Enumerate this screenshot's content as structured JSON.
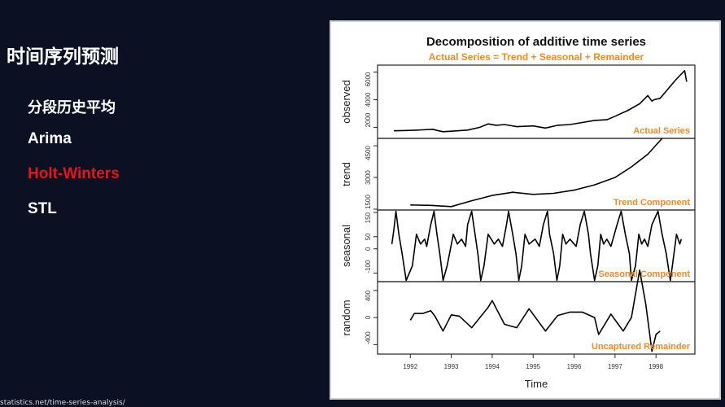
{
  "slide": {
    "title": "时间序列预测",
    "items": [
      {
        "label": "分段历史平均",
        "active": false
      },
      {
        "label": "Arima",
        "active": false
      },
      {
        "label": "Holt-Winters",
        "active": true
      },
      {
        "label": "STL",
        "active": false
      }
    ],
    "footer": "statistics.net/time-series-analysis/",
    "active_color": "#e8141a"
  },
  "chart_data": {
    "type": "line",
    "title": "Decomposition of additive time series",
    "subtitle": "Actual Series = Trend + Seasonal + Remainder",
    "xlabel": "Time",
    "x_ticks": [
      "1992",
      "1993",
      "1994",
      "1995",
      "1996",
      "1997",
      "1998"
    ],
    "xlim": [
      1991.2,
      1998.95
    ],
    "accent_color": "#f08a24",
    "panels": [
      {
        "ylabel": "observed",
        "annotation": "Actual Series",
        "ylim": [
          1200,
          6500
        ],
        "y_ticks": [
          "2000",
          "4000",
          "6000"
        ],
        "x": [
          1991.6,
          1992.0,
          1992.3,
          1992.55,
          1992.65,
          1992.8,
          1993.0,
          1993.4,
          1993.7,
          1993.9,
          1994.1,
          1994.3,
          1994.6,
          1995.0,
          1995.3,
          1995.6,
          1995.9,
          1996.2,
          1996.5,
          1996.8,
          1997.0,
          1997.3,
          1997.6,
          1997.8,
          1997.9,
          1997.95,
          1998.1,
          1998.3,
          1998.5,
          1998.7,
          1998.75
        ],
        "y": [
          1750,
          1780,
          1820,
          1860,
          1780,
          1680,
          1720,
          1800,
          2000,
          2250,
          2150,
          2200,
          2050,
          2100,
          1950,
          2150,
          2200,
          2350,
          2500,
          2550,
          2800,
          3200,
          3700,
          4300,
          3900,
          4000,
          4100,
          4800,
          5500,
          6100,
          5300
        ]
      },
      {
        "ylabel": "trend",
        "annotation": "Trend Component",
        "ylim": [
          1460,
          4850
        ],
        "y_ticks": [
          "1500",
          "3000",
          "4500"
        ],
        "x": [
          1992.0,
          1992.5,
          1993.0,
          1993.5,
          1994.0,
          1994.5,
          1995.0,
          1995.5,
          1996.0,
          1996.5,
          1997.0,
          1997.4,
          1997.8,
          1998.15
        ],
        "y": [
          1700,
          1680,
          1620,
          1900,
          2150,
          2300,
          2200,
          2250,
          2400,
          2650,
          3000,
          3500,
          4100,
          4850
        ]
      },
      {
        "ylabel": "seasonal",
        "annotation": "Seasonal Component",
        "ylim": [
          -135,
          160
        ],
        "y_ticks": [
          "-100",
          "0",
          "50",
          "150"
        ],
        "x": [
          1991.55,
          1991.6,
          1991.65,
          1991.72,
          1991.8,
          1991.9,
          1992.05,
          1992.15,
          1992.25,
          1992.35,
          1992.4,
          1992.5,
          1992.58,
          1992.65,
          1992.72,
          1992.8,
          1992.9,
          1993.05,
          1993.15,
          1993.25,
          1993.35,
          1993.4,
          1993.5,
          1993.58,
          1993.65,
          1993.72,
          1993.8,
          1993.9,
          1994.05,
          1994.15,
          1994.25,
          1994.35,
          1994.4,
          1994.5,
          1994.58,
          1994.65,
          1994.72,
          1994.8,
          1994.9,
          1995.05,
          1995.15,
          1995.25,
          1995.35,
          1995.4,
          1995.5,
          1995.58,
          1995.65,
          1995.72,
          1995.8,
          1995.9,
          1996.05,
          1996.15,
          1996.25,
          1996.35,
          1996.4,
          1996.5,
          1996.58,
          1996.65,
          1996.72,
          1996.8,
          1996.9,
          1997.05,
          1997.15,
          1997.25,
          1997.35,
          1997.4,
          1997.5,
          1997.58,
          1997.65,
          1997.72,
          1997.8,
          1997.9,
          1998.05,
          1998.15,
          1998.25,
          1998.35,
          1998.4,
          1998.5,
          1998.58,
          1998.62
        ],
        "y": [
          20,
          80,
          155,
          60,
          -20,
          -130,
          -70,
          60,
          20,
          40,
          10,
          100,
          155,
          60,
          -20,
          -130,
          -70,
          60,
          20,
          40,
          10,
          100,
          155,
          60,
          -20,
          -130,
          -70,
          60,
          20,
          40,
          10,
          100,
          155,
          60,
          -20,
          -130,
          -70,
          60,
          20,
          40,
          10,
          100,
          155,
          60,
          -20,
          -130,
          -70,
          60,
          20,
          40,
          10,
          100,
          155,
          60,
          -20,
          -130,
          -70,
          60,
          20,
          40,
          10,
          100,
          155,
          60,
          -20,
          -130,
          -70,
          60,
          20,
          40,
          10,
          100,
          155,
          60,
          -20,
          -130,
          -70,
          60,
          20,
          40
        ]
      },
      {
        "ylabel": "random",
        "annotation": "Uncaptured Remainder",
        "ylim": [
          -540,
          530
        ],
        "y_ticks": [
          "-400",
          "0",
          "400"
        ],
        "x": [
          1992.0,
          1992.1,
          1992.3,
          1992.5,
          1992.6,
          1992.8,
          1993.0,
          1993.2,
          1993.5,
          1993.9,
          1994.0,
          1994.3,
          1994.6,
          1994.9,
          1995.3,
          1995.6,
          1995.9,
          1996.2,
          1996.5,
          1996.6,
          1996.9,
          1997.2,
          1997.4,
          1997.6,
          1997.75,
          1997.9,
          1998.0,
          1998.1
        ],
        "y": [
          -40,
          60,
          60,
          100,
          20,
          -200,
          40,
          20,
          -150,
          150,
          250,
          -100,
          -150,
          130,
          -200,
          30,
          80,
          80,
          0,
          -250,
          50,
          -200,
          0,
          700,
          200,
          -500,
          -250,
          -200
        ]
      }
    ]
  }
}
